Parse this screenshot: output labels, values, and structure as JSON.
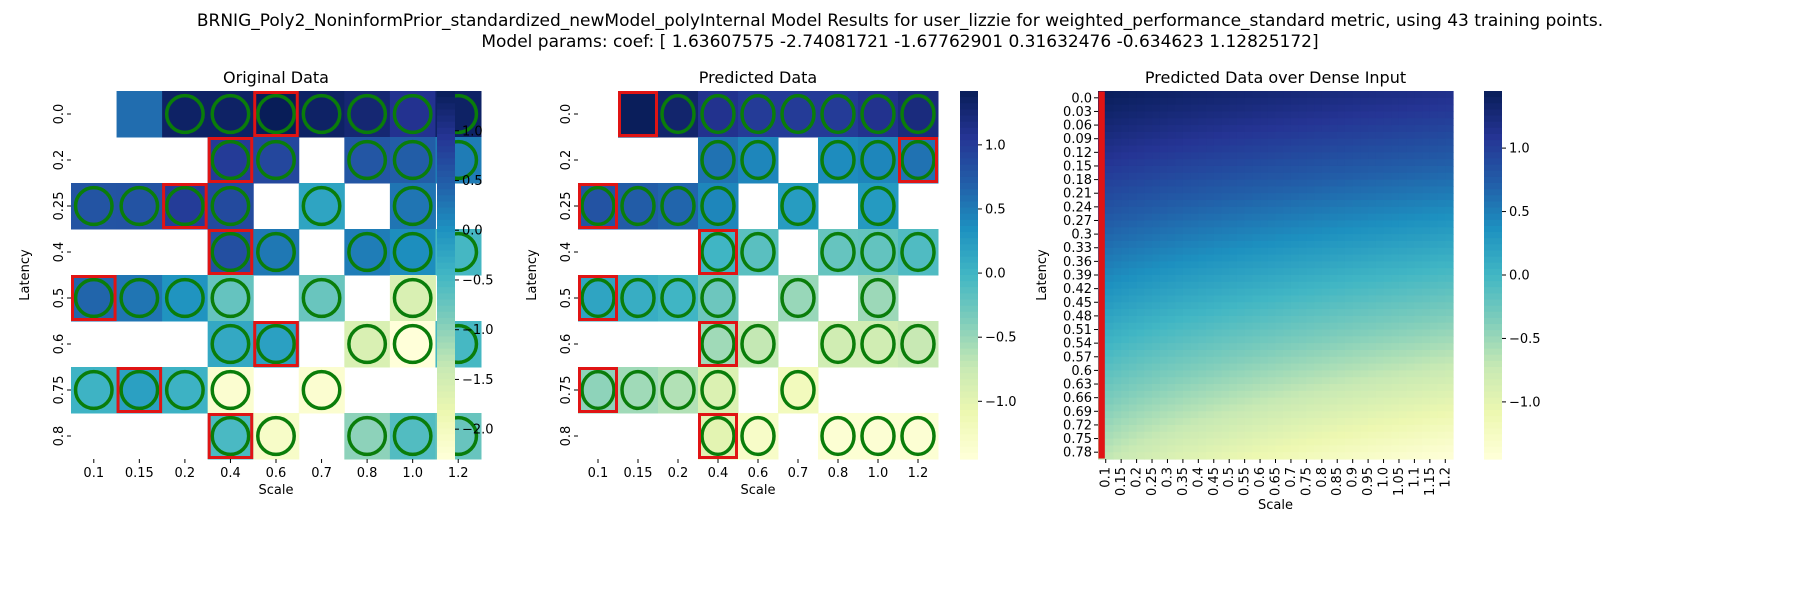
{
  "suptitle": {
    "line1": "BRNIG_Poly2_NoninformPrior_standardized_newModel_polyInternal Model Results for user_lizzie for weighted_performance_standard metric, using 43 training points.",
    "line2": "Model params: coef: [ 1.63607575 -2.74081721 -1.67762901  0.31632476 -0.634623    1.12825172]"
  },
  "colors": {
    "ramp": [
      "#ffffd9",
      "#edf8b1",
      "#c7e9b4",
      "#7fcdbb",
      "#41b6c4",
      "#1d91c0",
      "#225ea8",
      "#253494",
      "#081d58"
    ],
    "circle": "#0a7d0a",
    "highlight": "#e01414"
  },
  "chart_data": [
    {
      "type": "heatmap",
      "title": "Original Data",
      "xlabel": "Scale",
      "ylabel": "Latency",
      "x": [
        "0.1",
        "0.15",
        "0.2",
        "0.4",
        "0.6",
        "0.7",
        "0.8",
        "1.0",
        "1.2"
      ],
      "y": [
        "0.0",
        "0.2",
        "0.25",
        "0.4",
        "0.5",
        "0.6",
        "0.75",
        "0.8"
      ],
      "values": [
        [
          null,
          0.34,
          1.3,
          1.3,
          1.4,
          1.3,
          1.2,
          0.97,
          1.3
        ],
        [
          null,
          null,
          null,
          0.86,
          0.73,
          null,
          0.56,
          0.49,
          0.2
        ],
        [
          0.59,
          0.6,
          0.85,
          0.7,
          null,
          -0.22,
          null,
          0.27,
          null
        ],
        [
          null,
          null,
          null,
          0.64,
          0.24,
          null,
          0.19,
          0.043,
          -0.48
        ],
        [
          0.41,
          0.27,
          -0.023,
          -0.72,
          null,
          -0.75,
          null,
          -1.6,
          null
        ],
        [
          null,
          null,
          null,
          -0.28,
          -0.17,
          null,
          -1.6,
          -2.3,
          -0.49
        ],
        [
          -0.41,
          -0.17,
          -0.4,
          -2.2,
          null,
          -2.2,
          null,
          null,
          null
        ],
        [
          null,
          null,
          null,
          -0.52,
          -2.1,
          null,
          -1,
          -0.58,
          -0.74
        ]
      ],
      "labels": [
        [
          null,
          "0.34",
          "1.3",
          "1.3",
          "1.4",
          "1.3",
          "1.2",
          "0.97",
          "1.3"
        ],
        [
          null,
          null,
          null,
          "0.86",
          "0.73",
          null,
          "0.56",
          "0.49",
          "0.2"
        ],
        [
          "0.59",
          "0.6",
          "0.85",
          "0.7",
          null,
          "-0.22",
          null,
          "0.27",
          null
        ],
        [
          null,
          null,
          null,
          "0.64",
          "0.24",
          null,
          "0.19",
          "0.043",
          "-0.48"
        ],
        [
          "0.41",
          "0.27",
          "-0.023",
          "-0.72",
          null,
          "-0.75",
          null,
          "-1.6",
          null
        ],
        [
          null,
          null,
          null,
          "-0.28",
          "-0.17",
          null,
          "-1.6",
          "-2.3",
          "-0.49"
        ],
        [
          "-0.41",
          "-0.17",
          "-0.4",
          "-2.2",
          null,
          "-2.2",
          null,
          null,
          null
        ],
        [
          null,
          null,
          null,
          "-0.52",
          "-2.1",
          null,
          "-1",
          "-0.58",
          "-0.74"
        ]
      ],
      "circled": [
        [
          0,
          0,
          1,
          1,
          1,
          1,
          1,
          1,
          1
        ],
        [
          0,
          0,
          0,
          1,
          1,
          0,
          1,
          1,
          1
        ],
        [
          1,
          1,
          1,
          1,
          0,
          1,
          0,
          1,
          0
        ],
        [
          0,
          0,
          0,
          1,
          1,
          0,
          1,
          1,
          1
        ],
        [
          1,
          1,
          1,
          1,
          0,
          1,
          0,
          1,
          0
        ],
        [
          0,
          0,
          0,
          1,
          1,
          0,
          1,
          1,
          1
        ],
        [
          1,
          1,
          1,
          1,
          0,
          1,
          0,
          0,
          0
        ],
        [
          0,
          0,
          0,
          1,
          1,
          0,
          1,
          1,
          1
        ]
      ],
      "highlighted": [
        [
          0,
          4
        ],
        [
          1,
          3
        ],
        [
          2,
          2
        ],
        [
          3,
          3
        ],
        [
          4,
          0
        ],
        [
          5,
          4
        ],
        [
          6,
          1
        ],
        [
          7,
          3
        ]
      ],
      "vmin": -2.3,
      "vmax": 1.4,
      "colorbar_ticks": [
        1.0,
        0.5,
        0.0,
        -0.5,
        -1.0,
        -1.5,
        -2.0
      ],
      "colorbar_tick_labels": [
        "1.0",
        "0.5",
        "0.0",
        "−0.5",
        "−1.0",
        "−1.5",
        "−2.0"
      ]
    },
    {
      "type": "heatmap",
      "title": "Predicted Data",
      "xlabel": "Scale",
      "ylabel": "Latency",
      "x": [
        "0.1",
        "0.15",
        "0.2",
        "0.4",
        "0.6",
        "0.7",
        "0.8",
        "1.0",
        "1.2"
      ],
      "y": [
        "0.0",
        "0.2",
        "0.25",
        "0.4",
        "0.5",
        "0.6",
        "0.75",
        "0.8"
      ],
      "values": [
        [
          null,
          1.4,
          1.3,
          1.1,
          1,
          1,
          1,
          1.1,
          1.2
        ],
        [
          null,
          null,
          null,
          0.56,
          0.42,
          null,
          0.38,
          0.42,
          0.56
        ],
        [
          0.8,
          0.72,
          0.65,
          0.42,
          null,
          0.24,
          null,
          0.26,
          null
        ],
        [
          null,
          null,
          null,
          -0.0017,
          -0.16,
          null,
          -0.23,
          -0.21,
          -0.1
        ],
        [
          0.16,
          0.071,
          -0.0091,
          -0.27,
          null,
          -0.5,
          null,
          -0.52,
          null
        ],
        [
          null,
          null,
          null,
          -0.54,
          -0.72,
          null,
          -0.82,
          -0.82,
          -0.74
        ],
        [
          -0.45,
          -0.54,
          -0.63,
          -0.92,
          null,
          -1.2,
          null,
          null,
          null
        ],
        [
          null,
          null,
          null,
          -1,
          -1.3,
          null,
          -1.4,
          -1.4,
          -1.4
        ]
      ],
      "labels": [
        [
          null,
          "1.4",
          "1.3",
          "1.1",
          "1",
          "1",
          "1",
          "1.1",
          "1.2"
        ],
        [
          null,
          null,
          null,
          "0.56",
          "0.42",
          null,
          "0.38",
          "0.42",
          "0.56"
        ],
        [
          "0.8",
          "0.72",
          "0.65",
          "0.42",
          null,
          "0.24",
          null,
          "0.26",
          null
        ],
        [
          null,
          null,
          null,
          "-0.0017",
          "-0.16",
          null,
          "-0.23",
          "-0.21",
          "-0.1"
        ],
        [
          "0.16",
          "0.071",
          "-0.0091",
          "-0.27",
          null,
          "-0.5",
          null,
          "-0.52",
          null
        ],
        [
          null,
          null,
          null,
          "-0.54",
          "-0.72",
          null,
          "-0.82",
          "-0.82",
          "-0.74"
        ],
        [
          "-0.45",
          "-0.54",
          "-0.63",
          "-0.92",
          null,
          "-1.2",
          null,
          null,
          null
        ],
        [
          null,
          null,
          null,
          "-1",
          "-1.3",
          null,
          "-1.4",
          "-1.4",
          "-1.4"
        ]
      ],
      "circled": [
        [
          0,
          0,
          1,
          1,
          1,
          1,
          1,
          1,
          1
        ],
        [
          0,
          0,
          0,
          1,
          1,
          0,
          1,
          1,
          1
        ],
        [
          1,
          1,
          1,
          1,
          0,
          1,
          0,
          1,
          0
        ],
        [
          0,
          0,
          0,
          1,
          1,
          0,
          1,
          1,
          1
        ],
        [
          1,
          1,
          1,
          1,
          0,
          1,
          0,
          1,
          0
        ],
        [
          0,
          0,
          0,
          1,
          1,
          0,
          1,
          1,
          1
        ],
        [
          1,
          1,
          1,
          1,
          0,
          1,
          0,
          0,
          0
        ],
        [
          0,
          0,
          0,
          1,
          1,
          0,
          1,
          1,
          1
        ]
      ],
      "highlighted": [
        [
          0,
          1
        ],
        [
          1,
          8
        ],
        [
          2,
          0
        ],
        [
          3,
          3
        ],
        [
          4,
          0
        ],
        [
          5,
          3
        ],
        [
          6,
          0
        ],
        [
          7,
          3
        ]
      ],
      "vmin": -1.45,
      "vmax": 1.42,
      "colorbar_ticks": [
        1.0,
        0.5,
        0.0,
        -0.5,
        -1.0
      ],
      "colorbar_tick_labels": [
        "1.0",
        "0.5",
        "0.0",
        "−0.5",
        "−1.0"
      ]
    },
    {
      "type": "heatmap",
      "title": "Predicted Data over Dense Input",
      "xlabel": "Scale",
      "ylabel": "Latency",
      "x": [
        "0.1",
        "0.15",
        "0.2",
        "0.25",
        "0.3",
        "0.35",
        "0.4",
        "0.45",
        "0.5",
        "0.55",
        "0.6",
        "0.65",
        "0.7",
        "0.75",
        "0.8",
        "0.85",
        "0.9",
        "0.95",
        "1.0",
        "1.05",
        "1.1",
        "1.15",
        "1.2"
      ],
      "y": [
        "0.0",
        "0.03",
        "0.06",
        "0.09",
        "0.12",
        "0.15",
        "0.18",
        "0.21",
        "0.24",
        "0.27",
        "0.3",
        "0.33",
        "0.36",
        "0.39",
        "0.42",
        "0.45",
        "0.48",
        "0.51",
        "0.54",
        "0.57",
        "0.6",
        "0.63",
        "0.66",
        "0.69",
        "0.72",
        "0.75",
        "0.78"
      ],
      "z_corners": {
        "top_left": 1.45,
        "top_right": 1.15,
        "bottom_left": -0.65,
        "bottom_right": -1.45
      },
      "highlighted_column": "0.1",
      "vmin": -1.45,
      "vmax": 1.45,
      "colorbar_ticks": [
        1.0,
        0.5,
        0.0,
        -0.5,
        -1.0
      ],
      "colorbar_tick_labels": [
        "1.0",
        "0.5",
        "0.0",
        "−0.5",
        "−1.0"
      ]
    }
  ]
}
